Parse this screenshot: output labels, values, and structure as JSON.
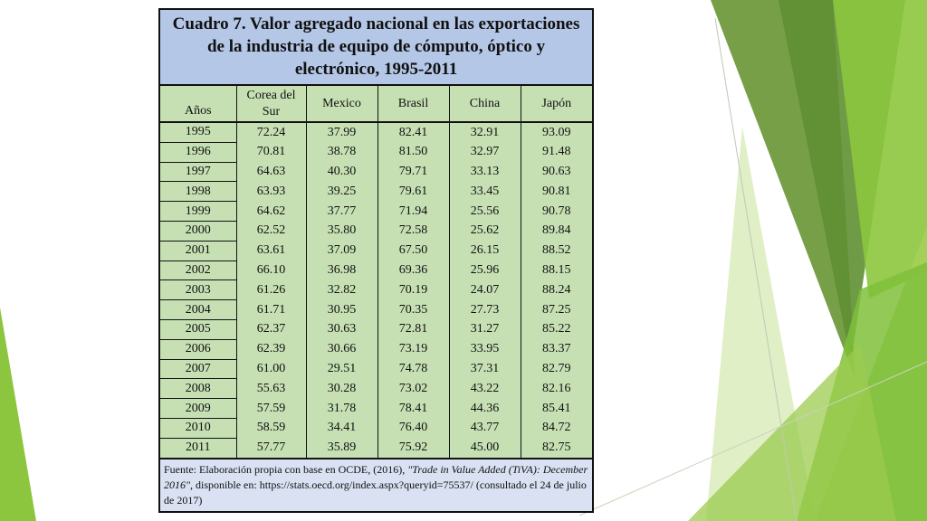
{
  "colors": {
    "title_bg": "#b4c7e7",
    "table_bg": "#c6e0b4",
    "source_bg": "#d9e1f2",
    "accent_dark_green": "#5d8f3a",
    "accent_light_green": "#8dc63f"
  },
  "table": {
    "title": "Cuadro 7. Valor agregado nacional en las exportaciones de la industria de equipo de cómputo, óptico y electrónico, 1995-2011",
    "headers": [
      "Años",
      "Corea del Sur",
      "Mexico",
      "Brasil",
      "China",
      "Japón"
    ],
    "rows": [
      [
        "1995",
        "72.24",
        "37.99",
        "82.41",
        "32.91",
        "93.09"
      ],
      [
        "1996",
        "70.81",
        "38.78",
        "81.50",
        "32.97",
        "91.48"
      ],
      [
        "1997",
        "64.63",
        "40.30",
        "79.71",
        "33.13",
        "90.63"
      ],
      [
        "1998",
        "63.93",
        "39.25",
        "79.61",
        "33.45",
        "90.81"
      ],
      [
        "1999",
        "64.62",
        "37.77",
        "71.94",
        "25.56",
        "90.78"
      ],
      [
        "2000",
        "62.52",
        "35.80",
        "72.58",
        "25.62",
        "89.84"
      ],
      [
        "2001",
        "63.61",
        "37.09",
        "67.50",
        "26.15",
        "88.52"
      ],
      [
        "2002",
        "66.10",
        "36.98",
        "69.36",
        "25.96",
        "88.15"
      ],
      [
        "2003",
        "61.26",
        "32.82",
        "70.19",
        "24.07",
        "88.24"
      ],
      [
        "2004",
        "61.71",
        "30.95",
        "70.35",
        "27.73",
        "87.25"
      ],
      [
        "2005",
        "62.37",
        "30.63",
        "72.81",
        "31.27",
        "85.22"
      ],
      [
        "2006",
        "62.39",
        "30.66",
        "73.19",
        "33.95",
        "83.37"
      ],
      [
        "2007",
        "61.00",
        "29.51",
        "74.78",
        "37.31",
        "82.79"
      ],
      [
        "2008",
        "55.63",
        "30.28",
        "73.02",
        "43.22",
        "82.16"
      ],
      [
        "2009",
        "57.59",
        "31.78",
        "78.41",
        "44.36",
        "85.41"
      ],
      [
        "2010",
        "58.59",
        "34.41",
        "76.40",
        "43.77",
        "84.72"
      ],
      [
        "2011",
        "57.77",
        "35.89",
        "75.92",
        "45.00",
        "82.75"
      ]
    ],
    "source": {
      "prefix": "Fuente: Elaboración propia con base en OCDE, (2016), ",
      "italic": "\"Trade in Value Added (TiVA): December 2016\",",
      "suffix": " disponible en: https://stats.oecd.org/index.aspx?queryid=75537/ (consultado el 24 de julio de 2017)"
    }
  }
}
